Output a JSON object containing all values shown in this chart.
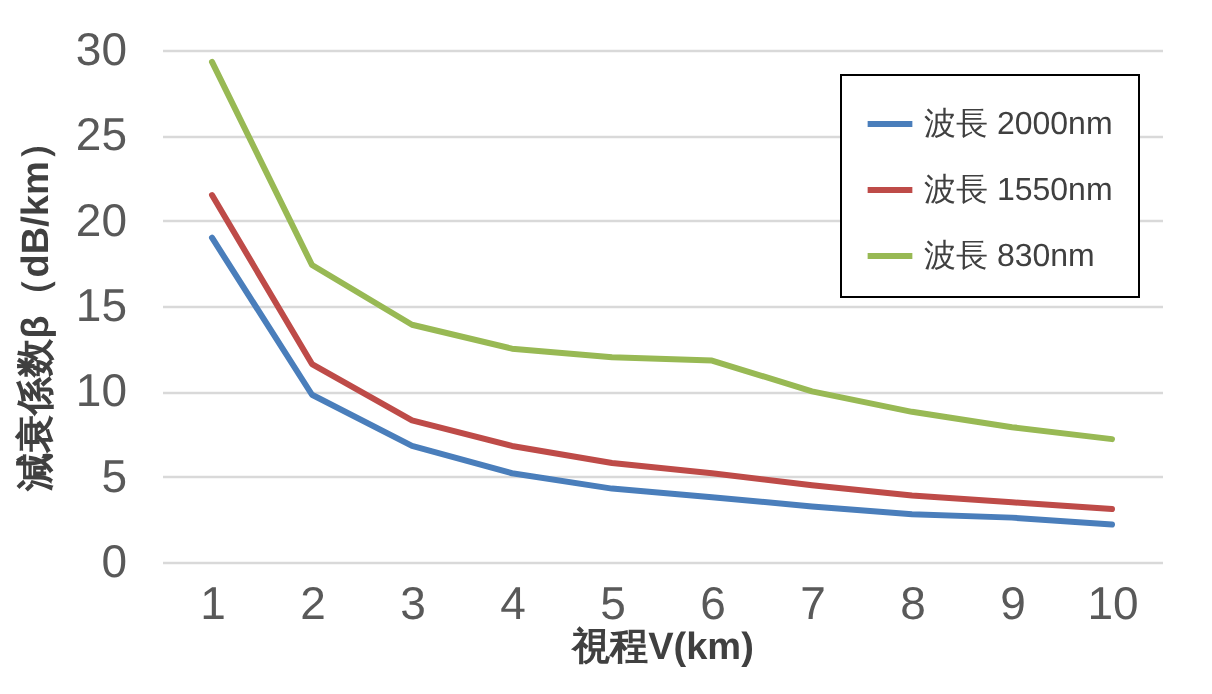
{
  "chart_data": {
    "type": "line",
    "xlabel": "視程V(km)",
    "ylabel": "減衰係数β（dB/km）",
    "categories": [
      "1",
      "2",
      "3",
      "4",
      "5",
      "6",
      "7",
      "8",
      "9",
      "10"
    ],
    "series": [
      {
        "name": "波長 2000nm",
        "color": "#4a7ebb",
        "values": [
          19.0,
          9.8,
          6.8,
          5.2,
          4.3,
          3.8,
          3.25,
          2.8,
          2.6,
          2.2
        ]
      },
      {
        "name": "波長 1550nm",
        "color": "#be4b48",
        "values": [
          21.5,
          11.6,
          8.3,
          6.8,
          5.8,
          5.2,
          4.5,
          3.9,
          3.5,
          3.1
        ]
      },
      {
        "name": "波長 830nm",
        "color": "#98b954",
        "values": [
          29.3,
          17.4,
          13.9,
          12.5,
          12.0,
          11.8,
          10.0,
          8.8,
          7.9,
          7.2
        ]
      }
    ],
    "ylim": [
      0,
      30
    ],
    "yticks": [
      0,
      5,
      10,
      15,
      20,
      25,
      30
    ],
    "grid": "y",
    "legend": "top right",
    "marker": "none",
    "line_style": "solid"
  }
}
